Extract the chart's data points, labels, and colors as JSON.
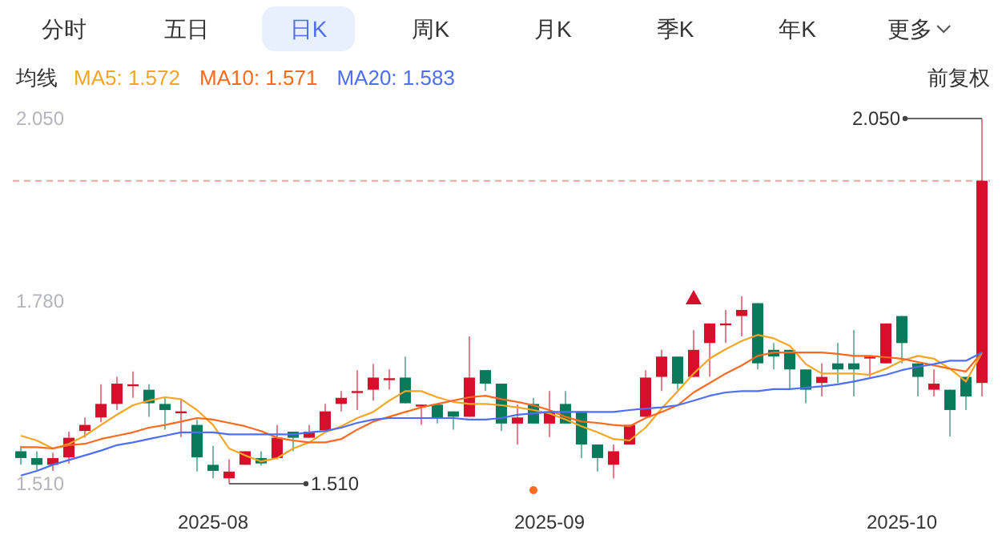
{
  "chart_data": {
    "type": "candlestick",
    "categories": [
      null,
      null,
      null,
      null,
      null,
      null,
      null,
      null,
      null,
      null,
      null,
      null,
      "2025-08",
      null,
      null,
      null,
      null,
      null,
      null,
      null,
      null,
      null,
      null,
      null,
      null,
      null,
      null,
      null,
      null,
      null,
      null,
      null,
      null,
      "2025-09",
      null,
      null,
      null,
      null,
      null,
      null,
      null,
      null,
      null,
      null,
      null,
      null,
      null,
      null,
      null,
      null,
      null,
      null,
      null,
      null,
      null,
      "2025-10",
      null,
      null,
      null,
      null,
      null
    ],
    "ohlc": [
      [
        1.558,
        1.566,
        1.538,
        1.548
      ],
      [
        1.548,
        1.558,
        1.53,
        1.538
      ],
      [
        1.538,
        1.556,
        1.529,
        1.548
      ],
      [
        1.549,
        1.587,
        1.54,
        1.578
      ],
      [
        1.588,
        1.608,
        1.578,
        1.597
      ],
      [
        1.608,
        1.657,
        1.601,
        1.628
      ],
      [
        1.628,
        1.668,
        1.619,
        1.658
      ],
      [
        1.656,
        1.676,
        1.637,
        1.657
      ],
      [
        1.649,
        1.657,
        1.609,
        1.629
      ],
      [
        1.628,
        1.637,
        1.59,
        1.619
      ],
      [
        1.616,
        1.635,
        1.579,
        1.617
      ],
      [
        1.597,
        1.605,
        1.528,
        1.549
      ],
      [
        1.538,
        1.566,
        1.518,
        1.529
      ],
      [
        1.518,
        1.546,
        1.51,
        1.528
      ],
      [
        1.538,
        1.558,
        1.538,
        1.558
      ],
      [
        1.548,
        1.558,
        1.537,
        1.54
      ],
      [
        1.548,
        1.597,
        1.546,
        1.578
      ],
      [
        1.587,
        1.587,
        1.558,
        1.578
      ],
      [
        1.578,
        1.597,
        1.578,
        1.587
      ],
      [
        1.589,
        1.628,
        1.587,
        1.617
      ],
      [
        1.628,
        1.647,
        1.617,
        1.637
      ],
      [
        1.646,
        1.678,
        1.619,
        1.647
      ],
      [
        1.649,
        1.687,
        1.633,
        1.667
      ],
      [
        1.665,
        1.679,
        1.649,
        1.666
      ],
      [
        1.667,
        1.698,
        1.629,
        1.629
      ],
      [
        1.626,
        1.627,
        1.597,
        1.627
      ],
      [
        1.627,
        1.627,
        1.599,
        1.608
      ],
      [
        1.617,
        1.617,
        1.59,
        1.609
      ],
      [
        1.609,
        1.728,
        1.609,
        1.667
      ],
      [
        1.678,
        1.678,
        1.647,
        1.658
      ],
      [
        1.658,
        1.658,
        1.588,
        1.599
      ],
      [
        1.599,
        1.627,
        1.568,
        1.608
      ],
      [
        1.628,
        1.637,
        1.599,
        1.599
      ],
      [
        1.599,
        1.647,
        1.579,
        1.617
      ],
      [
        1.628,
        1.647,
        1.599,
        1.599
      ],
      [
        1.617,
        1.617,
        1.548,
        1.568
      ],
      [
        1.568,
        1.568,
        1.528,
        1.548
      ],
      [
        1.538,
        1.568,
        1.518,
        1.558
      ],
      [
        1.568,
        1.597,
        1.568,
        1.597
      ],
      [
        1.609,
        1.678,
        1.609,
        1.667
      ],
      [
        1.668,
        1.708,
        1.647,
        1.698
      ],
      [
        1.698,
        1.698,
        1.649,
        1.658
      ],
      [
        1.668,
        1.737,
        1.668,
        1.708
      ],
      [
        1.718,
        1.747,
        1.668,
        1.747
      ],
      [
        1.746,
        1.767,
        1.718,
        1.747
      ],
      [
        1.758,
        1.787,
        1.728,
        1.767
      ],
      [
        1.777,
        1.777,
        1.679,
        1.688
      ],
      [
        1.708,
        1.718,
        1.679,
        1.698
      ],
      [
        1.708,
        1.708,
        1.649,
        1.679
      ],
      [
        1.679,
        1.679,
        1.629,
        1.649
      ],
      [
        1.659,
        1.688,
        1.639,
        1.668
      ],
      [
        1.688,
        1.718,
        1.659,
        1.679
      ],
      [
        1.688,
        1.737,
        1.639,
        1.679
      ],
      [
        1.697,
        1.698,
        1.668,
        1.698
      ],
      [
        1.688,
        1.747,
        1.688,
        1.747
      ],
      [
        1.758,
        1.758,
        1.688,
        1.718
      ],
      [
        1.688,
        1.688,
        1.639,
        1.668
      ],
      [
        1.649,
        1.679,
        1.639,
        1.658
      ],
      [
        1.649,
        1.649,
        1.58,
        1.619
      ],
      [
        1.668,
        1.668,
        1.619,
        1.639
      ],
      [
        1.659,
        2.05,
        1.639,
        1.958
      ]
    ],
    "colors": [
      "#0b7a5c",
      "#0b7a5c",
      "#d6102b",
      "#d6102b",
      "#d6102b",
      "#d6102b",
      "#d6102b",
      "#d6102b",
      "#0b7a5c",
      "#0b7a5c",
      "#d6102b",
      "#0b7a5c",
      "#0b7a5c",
      "#d6102b",
      "#d6102b",
      "#0b7a5c",
      "#d6102b",
      "#0b7a5c",
      "#d6102b",
      "#d6102b",
      "#d6102b",
      "#d6102b",
      "#d6102b",
      "#d6102b",
      "#0b7a5c",
      "#d6102b",
      "#0b7a5c",
      "#0b7a5c",
      "#d6102b",
      "#0b7a5c",
      "#0b7a5c",
      "#d6102b",
      "#0b7a5c",
      "#d6102b",
      "#0b7a5c",
      "#0b7a5c",
      "#0b7a5c",
      "#d6102b",
      "#d6102b",
      "#d6102b",
      "#d6102b",
      "#0b7a5c",
      "#d6102b",
      "#d6102b",
      "#d6102b",
      "#d6102b",
      "#0b7a5c",
      "#0b7a5c",
      "#0b7a5c",
      "#0b7a5c",
      "#d6102b",
      "#0b7a5c",
      "#0b7a5c",
      "#d6102b",
      "#d6102b",
      "#0b7a5c",
      "#0b7a5c",
      "#d6102b",
      "#0b7a5c",
      "#0b7a5c",
      "#d6102b"
    ],
    "series": [
      {
        "name": "MA5: 1.572",
        "type": "line",
        "color": "#f5a623",
        "values": [
          1.581,
          1.574,
          1.562,
          1.569,
          1.581,
          1.597,
          1.612,
          1.626,
          1.633,
          1.638,
          1.635,
          1.619,
          1.597,
          1.562,
          1.552,
          1.543,
          1.548,
          1.562,
          1.571,
          1.586,
          1.595,
          1.607,
          1.616,
          1.633,
          1.647,
          1.647,
          1.638,
          1.631,
          1.628,
          1.628,
          1.626,
          1.623,
          1.619,
          1.614,
          1.605,
          1.595,
          1.586,
          1.576,
          1.574,
          1.593,
          1.621,
          1.647,
          1.673,
          1.695,
          1.709,
          1.721,
          1.73,
          1.725,
          1.714,
          1.687,
          1.673,
          1.673,
          1.673,
          1.671,
          1.68,
          1.692,
          1.699,
          1.695,
          1.68,
          1.661,
          1.704
        ]
      },
      {
        "name": "MA10: 1.571",
        "type": "line",
        "color": "#ff6a1f",
        "values": [
          1.564,
          1.564,
          1.562,
          1.567,
          1.569,
          1.576,
          1.581,
          1.586,
          1.593,
          1.597,
          1.602,
          1.607,
          1.605,
          1.6,
          1.595,
          1.588,
          1.578,
          1.574,
          1.571,
          1.571,
          1.576,
          1.59,
          1.602,
          1.609,
          1.616,
          1.623,
          1.628,
          1.633,
          1.638,
          1.64,
          1.635,
          1.631,
          1.626,
          1.619,
          1.609,
          1.602,
          1.6,
          1.597,
          1.595,
          1.607,
          1.616,
          1.626,
          1.645,
          1.659,
          1.673,
          1.685,
          1.699,
          1.704,
          1.704,
          1.704,
          1.704,
          1.702,
          1.699,
          1.699,
          1.697,
          1.695,
          1.69,
          1.685,
          1.68,
          1.676,
          1.704
        ]
      },
      {
        "name": "MA20: 1.583",
        "type": "line",
        "color": "#4d6ef5",
        "values": [
          1.522,
          1.529,
          1.538,
          1.545,
          1.552,
          1.559,
          1.567,
          1.571,
          1.576,
          1.581,
          1.586,
          1.586,
          1.586,
          1.583,
          1.583,
          1.583,
          1.583,
          1.583,
          1.586,
          1.588,
          1.593,
          1.6,
          1.605,
          1.607,
          1.607,
          1.607,
          1.607,
          1.607,
          1.605,
          1.605,
          1.607,
          1.612,
          1.614,
          1.616,
          1.616,
          1.616,
          1.616,
          1.616,
          1.619,
          1.621,
          1.623,
          1.626,
          1.633,
          1.64,
          1.645,
          1.647,
          1.647,
          1.65,
          1.65,
          1.652,
          1.654,
          1.657,
          1.661,
          1.666,
          1.671,
          1.678,
          1.683,
          1.687,
          1.692,
          1.692,
          1.704
        ]
      }
    ],
    "legend_title": "均线",
    "legend": "top left",
    "ylim": [
      1.51,
      2.05
    ],
    "yticks": [
      {
        "value": 2.05,
        "label": "2.050"
      },
      {
        "value": 1.78,
        "label": "1.780"
      },
      {
        "value": 1.51,
        "label": "1.510"
      }
    ],
    "ref_lines": [
      {
        "axis": "y",
        "value": 1.958,
        "color": "#f7a3a3",
        "line_style": "dashed"
      }
    ],
    "annotations": [
      "分时",
      "五日",
      "日K",
      "周K",
      "月K",
      "季K",
      "年K",
      "更多",
      "2.050",
      "1.510",
      "前复权"
    ]
  }
}
